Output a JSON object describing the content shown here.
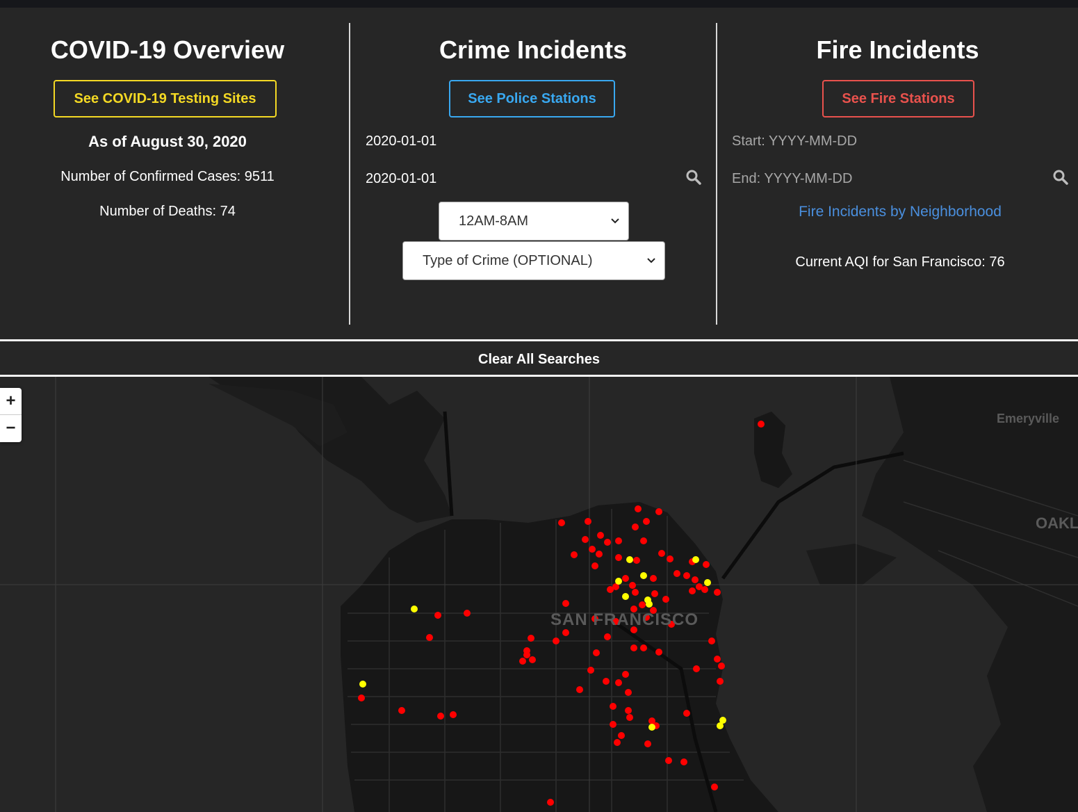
{
  "covid": {
    "title": "COVID-19 Overview",
    "button_label": "See COVID-19 Testing Sites",
    "as_of": "As of August 30, 2020",
    "confirmed": "Number of Confirmed Cases: 9511",
    "deaths": "Number of Deaths: 74"
  },
  "crime": {
    "title": "Crime Incidents",
    "button_label": "See Police Stations",
    "start_date": "2020-01-01",
    "end_date": "2020-01-01",
    "time_select": "12AM-8AM",
    "type_select": "Type of Crime (OPTIONAL)"
  },
  "fire": {
    "title": "Fire Incidents",
    "button_label": "See Fire Stations",
    "start_placeholder": "Start: YYYY-MM-DD",
    "end_placeholder": "End: YYYY-MM-DD",
    "neighborhood_link": "Fire Incidents by Neighborhood",
    "aqi": "Current AQI for San Francisco: 76"
  },
  "clear_all": "Clear All Searches",
  "map": {
    "zoom_in": "+",
    "zoom_out": "−",
    "labels": {
      "city": "SAN FRANCISCO",
      "emeryville": "Emeryville",
      "oakland": "OAKL"
    }
  },
  "colors": {
    "covid": "#f4d924",
    "police": "#39a8f0",
    "fire": "#e9524d",
    "link": "#4a8fde",
    "crime_marker": "#ff0000",
    "covid_marker": "#ffff00"
  }
}
